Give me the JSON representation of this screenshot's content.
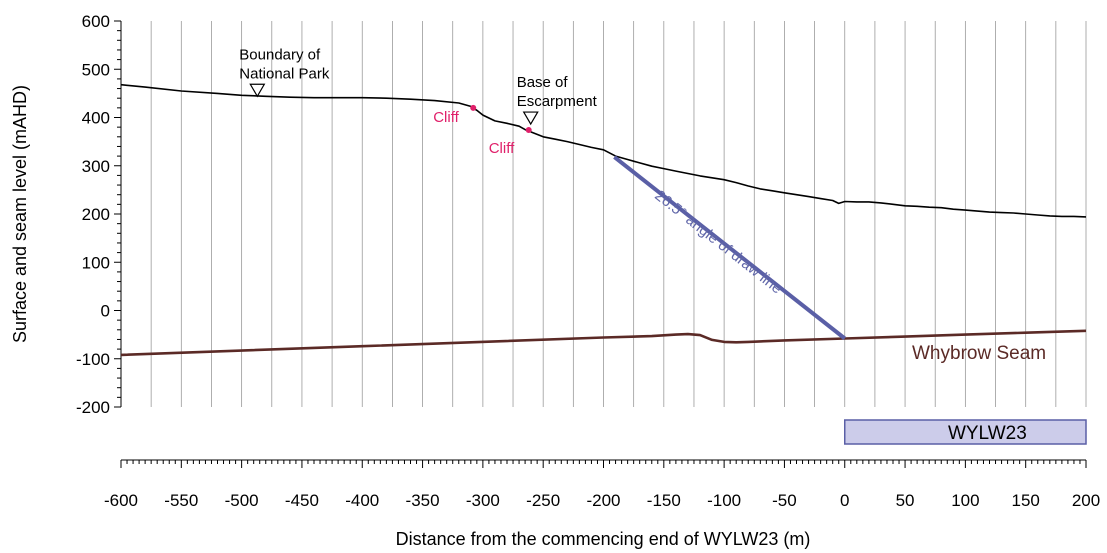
{
  "chart_data": {
    "type": "line",
    "title": "",
    "xlabel": "Distance from the commencing end of WYLW23 (m)",
    "ylabel": "Surface and seam level (mAHD)",
    "xlim": [
      -600,
      200
    ],
    "ylim": [
      -200,
      600
    ],
    "x_ticks": [
      "-600",
      "-550",
      "-500",
      "-450",
      "-400",
      "-350",
      "-300",
      "-250",
      "-200",
      "-150",
      "-100",
      "-50",
      "0",
      "50",
      "100",
      "150",
      "200"
    ],
    "y_ticks": [
      "600",
      "500",
      "400",
      "300",
      "200",
      "100",
      "0",
      "-100",
      "-200"
    ],
    "grid": true,
    "series": [
      {
        "key": "surface",
        "color": "#000000",
        "x": [
          -600,
          -580,
          -550,
          -520,
          -500,
          -480,
          -460,
          -440,
          -420,
          -400,
          -380,
          -360,
          -340,
          -320,
          -310,
          -305,
          -300,
          -290,
          -280,
          -270,
          -265,
          -260,
          -250,
          -240,
          -230,
          -220,
          -210,
          -200,
          -190,
          -180,
          -170,
          -160,
          -150,
          -140,
          -130,
          -120,
          -110,
          -100,
          -90,
          -80,
          -70,
          -60,
          -50,
          -40,
          -30,
          -20,
          -10,
          -5,
          0,
          10,
          20,
          30,
          40,
          50,
          60,
          70,
          80,
          90,
          100,
          110,
          120,
          130,
          140,
          150,
          160,
          170,
          180,
          190,
          200
        ],
        "y": [
          468,
          463,
          455,
          450,
          446,
          444,
          442,
          441,
          441,
          441,
          440,
          438,
          435,
          430,
          423,
          415,
          405,
          393,
          388,
          382,
          375,
          370,
          360,
          355,
          350,
          344,
          338,
          333,
          320,
          313,
          306,
          299,
          294,
          289,
          284,
          279,
          275,
          271,
          265,
          258,
          252,
          248,
          244,
          240,
          236,
          232,
          228,
          222,
          226,
          225,
          225,
          223,
          220,
          217,
          216,
          214,
          213,
          210,
          208,
          206,
          204,
          203,
          202,
          200,
          198,
          196,
          195,
          195,
          194
        ]
      },
      {
        "key": "seam",
        "name": "Whybrow Seam",
        "color": "#5b2a26",
        "x": [
          -600,
          -400,
          -200,
          -160,
          -140,
          -130,
          -120,
          -110,
          -100,
          -90,
          -80,
          -50,
          0,
          50,
          100,
          150,
          200
        ],
        "y": [
          -92,
          -74,
          -56,
          -53,
          -50,
          -49,
          -51,
          -61,
          -65,
          -66,
          -65,
          -62,
          -58,
          -54,
          -50,
          -46,
          -42
        ]
      },
      {
        "key": "draw_line",
        "name": "26.5° angle of draw line",
        "color": "#5a5fa6",
        "x": [
          -191,
          0
        ],
        "y": [
          318,
          -58
        ]
      }
    ],
    "points": [
      {
        "label": "Cliff",
        "x": -308,
        "y": 420,
        "color": "#e0206a"
      },
      {
        "label": "Cliff",
        "x": -262,
        "y": 374,
        "color": "#e0206a"
      }
    ],
    "markers": [
      {
        "label_lines": [
          "Boundary of",
          "National Park"
        ],
        "x": -487,
        "y": 444
      },
      {
        "label_lines": [
          "Base of",
          "Escarpment"
        ],
        "x": -262,
        "y": 374
      }
    ],
    "panel": {
      "label": "WYLW23",
      "x_start": 0,
      "x_end": 200,
      "fill": "#ccccea",
      "stroke": "#5a5fa6"
    }
  }
}
